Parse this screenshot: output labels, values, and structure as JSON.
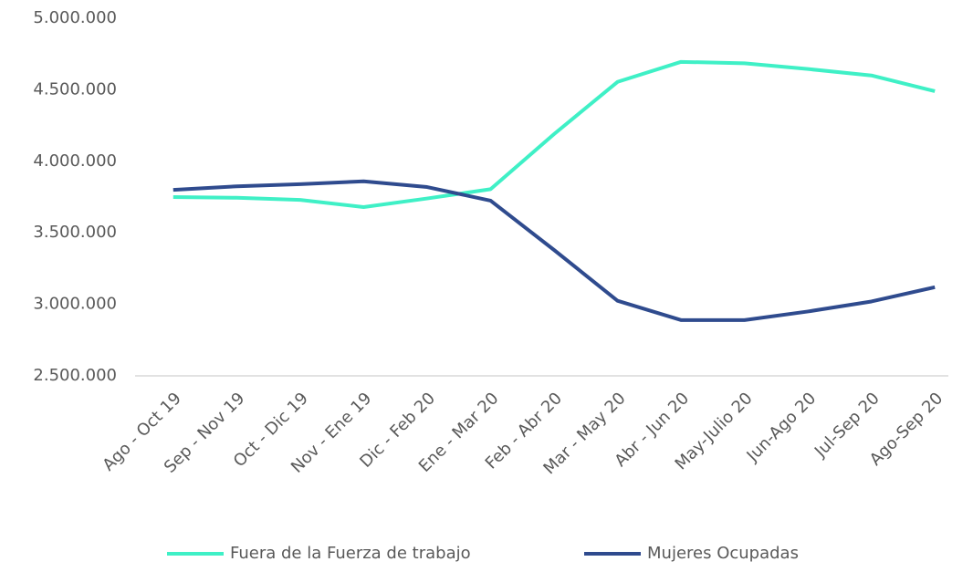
{
  "chart_data": {
    "type": "line",
    "categories": [
      "Ago - Oct 19",
      "Sep - Nov 19",
      "Oct - Dic 19",
      "Nov - Ene 19",
      "Dic - Feb 20",
      "Ene - Mar 20",
      "Feb - Abr 20",
      "Mar - May 20",
      "Abr - Jun 20",
      "May-Julio 20",
      "Jun-Ago 20",
      "Jul-Sep 20",
      "Ago-Sep 20"
    ],
    "series": [
      {
        "name": "Fuera de la Fuerza de trabajo",
        "color": "#3ff0c6",
        "values": [
          3750000,
          3745000,
          3730000,
          3680000,
          3740000,
          3805000,
          4190000,
          4555000,
          4695000,
          4685000,
          4645000,
          4600000,
          4490000
        ]
      },
      {
        "name": "Mujeres Ocupadas",
        "color": "#2f4b8e",
        "values": [
          3800000,
          3825000,
          3840000,
          3860000,
          3820000,
          3725000,
          3380000,
          3025000,
          2890000,
          2890000,
          2950000,
          3020000,
          3120000
        ]
      }
    ],
    "ylim": [
      2500000,
      5000000
    ],
    "yticks": [
      {
        "value": 2500000,
        "label": "2.500.000"
      },
      {
        "value": 3000000,
        "label": "3.000.000"
      },
      {
        "value": 3500000,
        "label": "3.500.000"
      },
      {
        "value": 4000000,
        "label": "4.000.000"
      },
      {
        "value": 4500000,
        "label": "4.500.000"
      },
      {
        "value": 5000000,
        "label": "5.000.000"
      }
    ],
    "grid": false,
    "legend": "bottom"
  }
}
